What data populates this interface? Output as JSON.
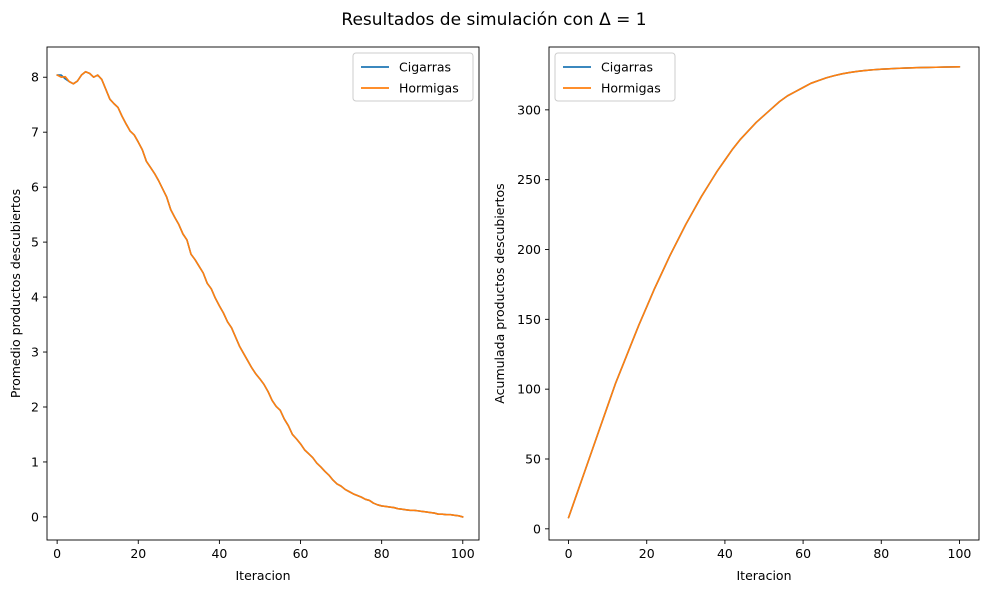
{
  "figure": {
    "suptitle": "Resultados de simulación con Δ = 1"
  },
  "chart_data": [
    {
      "type": "line",
      "xlabel": "Iteracion",
      "ylabel": "Promedio productos descubiertos",
      "xlim": [
        -2.5,
        104
      ],
      "ylim": [
        -0.42,
        8.55
      ],
      "xticks": [
        0,
        20,
        40,
        60,
        80,
        100
      ],
      "yticks": [
        0,
        1,
        2,
        3,
        4,
        5,
        6,
        7,
        8
      ],
      "legend": "top-right",
      "grid": false,
      "series": [
        {
          "name": "Cigarras",
          "color": "#1f77b4",
          "x": [
            0,
            1,
            2,
            3,
            4,
            5,
            6,
            7,
            8,
            9,
            10,
            11,
            12,
            13,
            14,
            15,
            16,
            17,
            18,
            19,
            20,
            21,
            22,
            23,
            24,
            25,
            26,
            27,
            28,
            29,
            30,
            31,
            32,
            33,
            34,
            35,
            36,
            37,
            38,
            39,
            40,
            41,
            42,
            43,
            44,
            45,
            46,
            47,
            48,
            49,
            50,
            51,
            52,
            53,
            54,
            55,
            56,
            57,
            58,
            59,
            60,
            61,
            62,
            63,
            64,
            65,
            66,
            67,
            68,
            69,
            70,
            71,
            72,
            73,
            74,
            75,
            76,
            77,
            78,
            79,
            80,
            81,
            82,
            83,
            84,
            85,
            86,
            87,
            88,
            89,
            90,
            91,
            92,
            93,
            94,
            95,
            96,
            97,
            98,
            99,
            100
          ],
          "y": [
            8.04,
            8.04,
            7.97,
            7.92,
            7.88,
            7.93,
            8.04,
            8.1,
            8.07,
            8.0,
            8.04,
            7.96,
            7.78,
            7.6,
            7.52,
            7.45,
            7.29,
            7.15,
            7.02,
            6.95,
            6.82,
            6.68,
            6.47,
            6.36,
            6.25,
            6.12,
            5.97,
            5.82,
            5.59,
            5.45,
            5.32,
            5.15,
            5.04,
            4.78,
            4.68,
            4.56,
            4.44,
            4.25,
            4.15,
            3.98,
            3.84,
            3.71,
            3.55,
            3.44,
            3.27,
            3.1,
            2.97,
            2.84,
            2.71,
            2.6,
            2.51,
            2.41,
            2.28,
            2.12,
            2.01,
            1.94,
            1.78,
            1.66,
            1.5,
            1.42,
            1.33,
            1.22,
            1.15,
            1.08,
            0.98,
            0.91,
            0.83,
            0.76,
            0.67,
            0.6,
            0.56,
            0.5,
            0.46,
            0.42,
            0.39,
            0.36,
            0.32,
            0.3,
            0.25,
            0.22,
            0.2,
            0.19,
            0.18,
            0.17,
            0.15,
            0.14,
            0.13,
            0.12,
            0.12,
            0.11,
            0.1,
            0.09,
            0.08,
            0.07,
            0.05,
            0.05,
            0.04,
            0.04,
            0.03,
            0.02,
            0.0
          ]
        },
        {
          "name": "Hormigas",
          "color": "#ff7f0e",
          "x": [
            0,
            1,
            2,
            3,
            4,
            5,
            6,
            7,
            8,
            9,
            10,
            11,
            12,
            13,
            14,
            15,
            16,
            17,
            18,
            19,
            20,
            21,
            22,
            23,
            24,
            25,
            26,
            27,
            28,
            29,
            30,
            31,
            32,
            33,
            34,
            35,
            36,
            37,
            38,
            39,
            40,
            41,
            42,
            43,
            44,
            45,
            46,
            47,
            48,
            49,
            50,
            51,
            52,
            53,
            54,
            55,
            56,
            57,
            58,
            59,
            60,
            61,
            62,
            63,
            64,
            65,
            66,
            67,
            68,
            69,
            70,
            71,
            72,
            73,
            74,
            75,
            76,
            77,
            78,
            79,
            80,
            81,
            82,
            83,
            84,
            85,
            86,
            87,
            88,
            89,
            90,
            91,
            92,
            93,
            94,
            95,
            96,
            97,
            98,
            99,
            100
          ],
          "y": [
            8.04,
            8.0,
            8.01,
            7.92,
            7.88,
            7.93,
            8.04,
            8.1,
            8.07,
            8.0,
            8.04,
            7.96,
            7.78,
            7.6,
            7.52,
            7.45,
            7.29,
            7.15,
            7.02,
            6.95,
            6.82,
            6.68,
            6.47,
            6.36,
            6.25,
            6.12,
            5.97,
            5.82,
            5.59,
            5.45,
            5.32,
            5.15,
            5.04,
            4.78,
            4.68,
            4.56,
            4.44,
            4.25,
            4.15,
            3.98,
            3.84,
            3.71,
            3.55,
            3.44,
            3.27,
            3.1,
            2.97,
            2.84,
            2.71,
            2.6,
            2.51,
            2.41,
            2.28,
            2.12,
            2.01,
            1.94,
            1.78,
            1.66,
            1.5,
            1.42,
            1.33,
            1.22,
            1.15,
            1.08,
            0.98,
            0.91,
            0.83,
            0.76,
            0.67,
            0.6,
            0.56,
            0.5,
            0.46,
            0.42,
            0.39,
            0.36,
            0.32,
            0.3,
            0.25,
            0.22,
            0.2,
            0.19,
            0.18,
            0.17,
            0.15,
            0.14,
            0.13,
            0.12,
            0.12,
            0.11,
            0.1,
            0.09,
            0.08,
            0.07,
            0.05,
            0.05,
            0.04,
            0.04,
            0.03,
            0.02,
            0.0
          ]
        }
      ]
    },
    {
      "type": "line",
      "xlabel": "Iteracion",
      "ylabel": "Acumulada productos descubiertos",
      "xlim": [
        -5,
        105
      ],
      "ylim": [
        -8,
        345
      ],
      "xticks": [
        0,
        20,
        40,
        60,
        80,
        100
      ],
      "yticks": [
        0,
        50,
        100,
        150,
        200,
        250,
        300
      ],
      "legend": "top-left",
      "grid": false,
      "series": [
        {
          "name": "Cigarras",
          "color": "#1f77b4",
          "x": [
            0,
            2,
            4,
            6,
            8,
            10,
            12,
            14,
            16,
            18,
            20,
            22,
            24,
            26,
            28,
            30,
            32,
            34,
            36,
            38,
            40,
            42,
            44,
            46,
            48,
            50,
            52,
            54,
            56,
            58,
            60,
            62,
            64,
            66,
            68,
            70,
            72,
            74,
            76,
            78,
            80,
            82,
            84,
            86,
            88,
            90,
            92,
            94,
            96,
            98,
            100
          ],
          "y": [
            8,
            24,
            40,
            56,
            72,
            88,
            104,
            118,
            132,
            146,
            159,
            172,
            184,
            196,
            207,
            218,
            228,
            238,
            247,
            256,
            264,
            272,
            279,
            285,
            291,
            296,
            301,
            306,
            310,
            313,
            316,
            319,
            321,
            323,
            324.5,
            325.8,
            326.8,
            327.6,
            328.2,
            328.7,
            329.1,
            329.4,
            329.7,
            329.9,
            330.1,
            330.3,
            330.4,
            330.5,
            330.6,
            330.7,
            330.8
          ]
        },
        {
          "name": "Hormigas",
          "color": "#ff7f0e",
          "x": [
            0,
            2,
            4,
            6,
            8,
            10,
            12,
            14,
            16,
            18,
            20,
            22,
            24,
            26,
            28,
            30,
            32,
            34,
            36,
            38,
            40,
            42,
            44,
            46,
            48,
            50,
            52,
            54,
            56,
            58,
            60,
            62,
            64,
            66,
            68,
            70,
            72,
            74,
            76,
            78,
            80,
            82,
            84,
            86,
            88,
            90,
            92,
            94,
            96,
            98,
            100
          ],
          "y": [
            8,
            24,
            40,
            56,
            72,
            88,
            104,
            118,
            132,
            146,
            159,
            172,
            184,
            196,
            207,
            218,
            228,
            238,
            247,
            256,
            264,
            272,
            279,
            285,
            291,
            296,
            301,
            306,
            310,
            313,
            316,
            319,
            321,
            323,
            324.5,
            325.8,
            326.8,
            327.6,
            328.2,
            328.7,
            329.1,
            329.4,
            329.7,
            329.9,
            330.1,
            330.3,
            330.4,
            330.5,
            330.6,
            330.7,
            330.8
          ]
        }
      ]
    }
  ]
}
